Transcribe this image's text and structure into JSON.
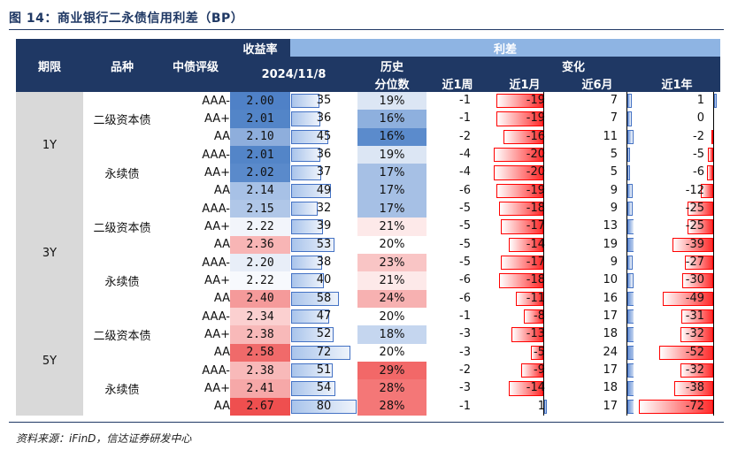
{
  "title": "图 14：商业银行二永债信用利差（BP）",
  "source": "资料来源：iFinD，信达证券研发中心",
  "header": {
    "period": "期限",
    "variety": "品种",
    "rating": "中债评级",
    "yield_group": "收益率",
    "date": "2024/11/8",
    "spread_group": "利差",
    "history": "历史",
    "percentile": "分位数",
    "change": "变化",
    "w1": "近1周",
    "m1": "近1月",
    "m6": "近6月",
    "y1": "近1年"
  },
  "colors": {
    "header": "#1f3864",
    "header_light": "#8eb4e3",
    "neg_bar": "#ff2b2b",
    "pos_bar": "#4472c4"
  },
  "groups": [
    {
      "term": "1Y",
      "subgroups": [
        {
          "variety": "二级资本债",
          "rows": [
            {
              "rating": "AAA-",
              "yield": "2.00",
              "spread": 35,
              "pct": "19%",
              "w1": -1,
              "m1": -19,
              "m6": 7,
              "y1": 1,
              "ycolor": "#4f81c7",
              "pcolor": "#dce6f4"
            },
            {
              "rating": "AA+",
              "yield": "2.01",
              "spread": 36,
              "pct": "16%",
              "w1": -1,
              "m1": -19,
              "m6": 7,
              "y1": 0,
              "ycolor": "#5385c8",
              "pcolor": "#8eb0de"
            },
            {
              "rating": "AA",
              "yield": "2.10",
              "spread": 45,
              "pct": "16%",
              "w1": -2,
              "m1": -16,
              "m6": 11,
              "y1": -2,
              "ycolor": "#8eaedc",
              "pcolor": "#5b8bcc"
            }
          ]
        },
        {
          "variety": "永续债",
          "rows": [
            {
              "rating": "AAA-",
              "yield": "2.01",
              "spread": 36,
              "pct": "19%",
              "w1": -4,
              "m1": -20,
              "m6": 5,
              "y1": -5,
              "ycolor": "#5385c8",
              "pcolor": "#dce6f4"
            },
            {
              "rating": "AA+",
              "yield": "2.02",
              "spread": 37,
              "pct": "17%",
              "w1": -4,
              "m1": -20,
              "m6": 5,
              "y1": -6,
              "ycolor": "#5a8acb",
              "pcolor": "#a6c0e5"
            },
            {
              "rating": "AA",
              "yield": "2.14",
              "spread": 49,
              "pct": "17%",
              "w1": -6,
              "m1": -19,
              "m6": 9,
              "y1": -12,
              "ycolor": "#a7c1e6",
              "pcolor": "#a6c0e5"
            }
          ]
        }
      ]
    },
    {
      "term": "3Y",
      "subgroups": [
        {
          "variety": "二级资本债",
          "rows": [
            {
              "rating": "AAA-",
              "yield": "2.15",
              "spread": 32,
              "pct": "17%",
              "w1": -5,
              "m1": -18,
              "m6": 9,
              "y1": -25,
              "ycolor": "#b0c7e8",
              "pcolor": "#a6c0e5"
            },
            {
              "rating": "AA+",
              "yield": "2.22",
              "spread": 39,
              "pct": "21%",
              "w1": -5,
              "m1": -17,
              "m6": 13,
              "y1": -25,
              "ycolor": "#f2f5fb",
              "pcolor": "#fde9e9"
            },
            {
              "rating": "AA",
              "yield": "2.36",
              "spread": 53,
              "pct": "20%",
              "w1": -5,
              "m1": -14,
              "m6": 19,
              "y1": -39,
              "ycolor": "#f8b5b5",
              "pcolor": "#ffffff"
            }
          ]
        },
        {
          "variety": "永续债",
          "rows": [
            {
              "rating": "AAA-",
              "yield": "2.20",
              "spread": 38,
              "pct": "23%",
              "w1": -5,
              "m1": -17,
              "m6": 9,
              "y1": -27,
              "ycolor": "#e8eef8",
              "pcolor": "#f9c5c5"
            },
            {
              "rating": "AA+",
              "yield": "2.22",
              "spread": 40,
              "pct": "21%",
              "w1": -6,
              "m1": -18,
              "m6": 10,
              "y1": -30,
              "ycolor": "#f7f9fd",
              "pcolor": "#fde9e9"
            },
            {
              "rating": "AA",
              "yield": "2.40",
              "spread": 58,
              "pct": "24%",
              "w1": -6,
              "m1": -11,
              "m6": 16,
              "y1": -49,
              "ycolor": "#f59a9a",
              "pcolor": "#f7b1b1"
            }
          ]
        }
      ]
    },
    {
      "term": "5Y",
      "subgroups": [
        {
          "variety": "二级资本债",
          "rows": [
            {
              "rating": "AAA-",
              "yield": "2.34",
              "spread": 47,
              "pct": "20%",
              "w1": -1,
              "m1": -8,
              "m6": 17,
              "y1": -31,
              "ycolor": "#fbd0d0",
              "pcolor": "#ffffff"
            },
            {
              "rating": "AA+",
              "yield": "2.38",
              "spread": 52,
              "pct": "18%",
              "w1": -3,
              "m1": -13,
              "m6": 18,
              "y1": -32,
              "ycolor": "#f8b9b9",
              "pcolor": "#c5d6ef"
            },
            {
              "rating": "AA",
              "yield": "2.58",
              "spread": 72,
              "pct": "20%",
              "w1": -3,
              "m1": -5,
              "m6": 24,
              "y1": -52,
              "ycolor": "#f06a6a",
              "pcolor": "#ffffff"
            }
          ]
        },
        {
          "variety": "永续债",
          "rows": [
            {
              "rating": "AAA-",
              "yield": "2.38",
              "spread": 51,
              "pct": "29%",
              "w1": -2,
              "m1": -9,
              "m6": 17,
              "y1": -32,
              "ycolor": "#f8b9b9",
              "pcolor": "#f26868"
            },
            {
              "rating": "AA+",
              "yield": "2.41",
              "spread": 54,
              "pct": "28%",
              "w1": -3,
              "m1": -14,
              "m6": 18,
              "y1": -38,
              "ycolor": "#f6a8a8",
              "pcolor": "#f47777"
            },
            {
              "rating": "AA",
              "yield": "2.67",
              "spread": 80,
              "pct": "28%",
              "w1": -1,
              "m1": 1,
              "m6": 17,
              "y1": -72,
              "ycolor": "#ef4f4f",
              "pcolor": "#f47777"
            }
          ]
        }
      ]
    }
  ]
}
